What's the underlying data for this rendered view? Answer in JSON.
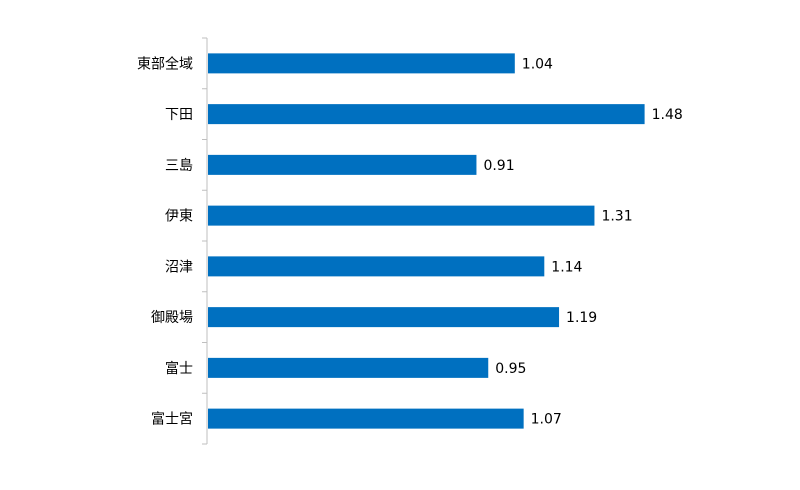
{
  "chart_data": {
    "type": "bar",
    "orientation": "horizontal",
    "categories": [
      "東部全域",
      "下田",
      "三島",
      "伊東",
      "沼津",
      "御殿場",
      "富士",
      "富士宮"
    ],
    "values": [
      1.04,
      1.48,
      0.91,
      1.31,
      1.14,
      1.19,
      0.95,
      1.07
    ],
    "value_labels": [
      "1.04",
      "1.48",
      "0.91",
      "1.31",
      "1.14",
      "1.19",
      "0.95",
      "1.07"
    ],
    "title": "",
    "xlabel": "",
    "ylabel": "",
    "xlim": [
      0,
      1.6
    ],
    "grid": false,
    "legend": "none",
    "bar_color": "#0070c0"
  }
}
